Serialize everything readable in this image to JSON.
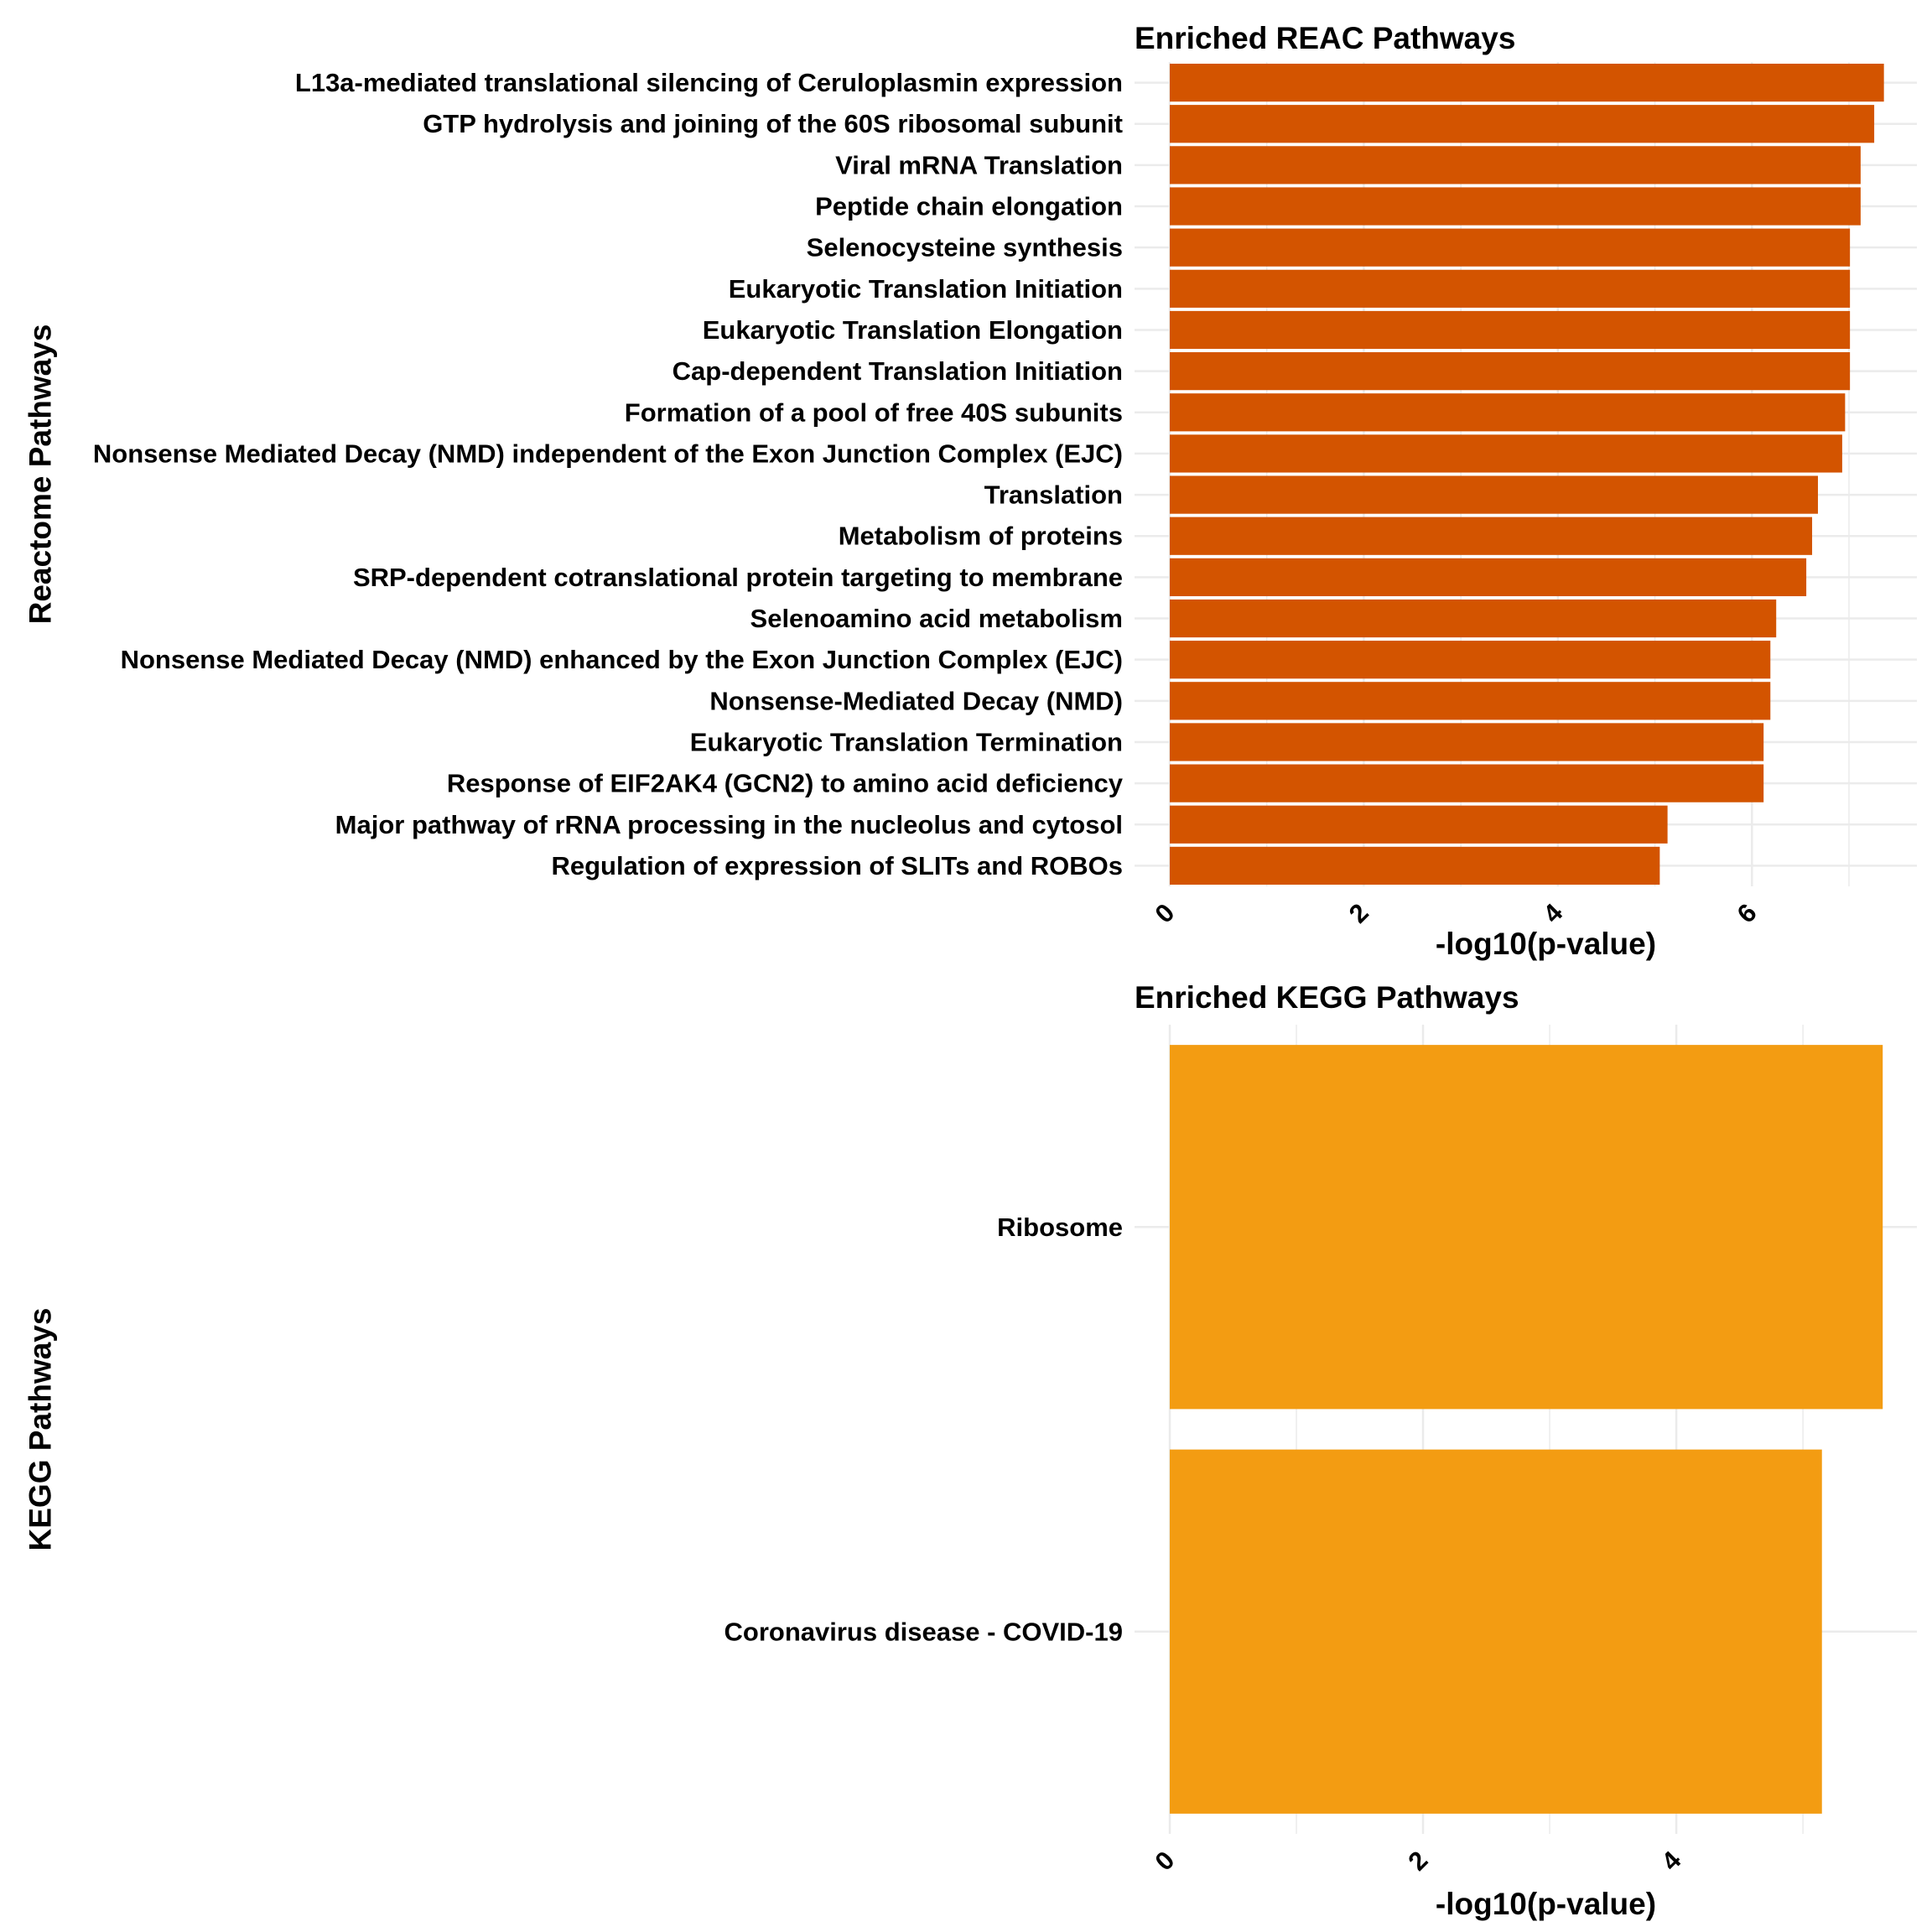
{
  "chart_data": [
    {
      "type": "bar",
      "orientation": "horizontal",
      "title": "Enriched REAC Pathways",
      "xlabel": "-log10(p-value)",
      "ylabel": "Reactome Pathways",
      "bar_color": "#D35400",
      "grid": true,
      "legend": "none",
      "xlim": [
        0,
        7.7
      ],
      "xticks": [
        0,
        2,
        4,
        6
      ],
      "categories": [
        "L13a-mediated translational silencing of Ceruloplasmin expression",
        "GTP hydrolysis and joining of the 60S ribosomal subunit",
        "Viral mRNA Translation",
        "Peptide chain elongation",
        "Selenocysteine synthesis",
        "Eukaryotic Translation Initiation",
        "Eukaryotic Translation Elongation",
        "Cap-dependent Translation Initiation",
        "Formation of a pool of free 40S subunits",
        "Nonsense Mediated Decay (NMD) independent of the Exon Junction Complex (EJC)",
        "Translation",
        "Metabolism of proteins",
        "SRP-dependent cotranslational protein targeting to membrane",
        "Selenoamino acid metabolism",
        "Nonsense Mediated Decay (NMD) enhanced by the Exon Junction Complex (EJC)",
        "Nonsense-Mediated Decay (NMD)",
        "Eukaryotic Translation Termination",
        "Response of EIF2AK4 (GCN2) to amino acid deficiency",
        "Major pathway of rRNA processing in the nucleolus and cytosol",
        "Regulation of expression of SLITs and ROBOs"
      ],
      "values": [
        7.36,
        7.26,
        7.12,
        7.12,
        7.01,
        7.01,
        7.01,
        7.01,
        6.96,
        6.93,
        6.68,
        6.62,
        6.56,
        6.25,
        6.19,
        6.19,
        6.12,
        6.12,
        5.13,
        5.05
      ]
    },
    {
      "type": "bar",
      "orientation": "horizontal",
      "title": "Enriched KEGG Pathways",
      "xlabel": "-log10(p-value)",
      "ylabel": "KEGG Pathways",
      "bar_color": "#F39C12",
      "grid": true,
      "legend": "none",
      "xlim": [
        0,
        5.9
      ],
      "xticks": [
        0,
        2,
        4
      ],
      "categories": [
        "Ribosome",
        "Coronavirus disease - COVID-19"
      ],
      "values": [
        5.63,
        5.15
      ]
    }
  ]
}
